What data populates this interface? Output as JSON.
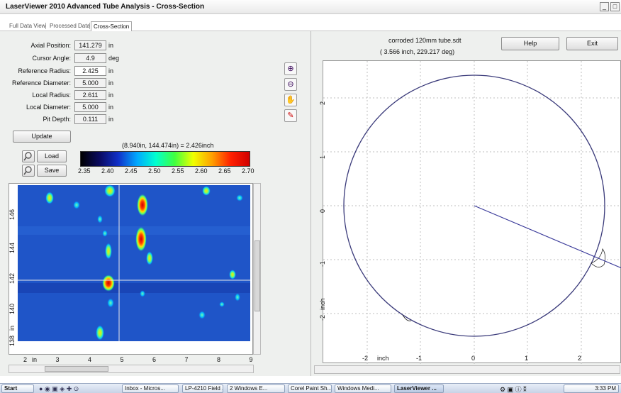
{
  "window": {
    "title": "LaserViewer 2010 Advanced Tube Analysis - Cross-Section",
    "min_label": "_",
    "max_label": "□"
  },
  "tabs": [
    {
      "label": "Full Data View"
    },
    {
      "label": "Processed Data"
    },
    {
      "label": "Cross-Section"
    }
  ],
  "fields": [
    {
      "label": "Axial Position:",
      "value": "141.279",
      "unit": "in"
    },
    {
      "label": "Cursor Angle:",
      "value": "4.9",
      "unit": "deg"
    },
    {
      "label": "Reference Radius:",
      "value": "2.425",
      "unit": "in"
    },
    {
      "label": "Reference Diameter:",
      "value": "5.000",
      "unit": "in"
    },
    {
      "label": "Local Radius:",
      "value": "2.611",
      "unit": "in"
    },
    {
      "label": "Local Diameter:",
      "value": "5.000",
      "unit": "in"
    },
    {
      "label": "Pit Depth:",
      "value": "0.111",
      "unit": "in"
    }
  ],
  "buttons": {
    "update": "Update",
    "load": "Load",
    "save": "Save",
    "help": "Help",
    "exit": "Exit"
  },
  "colorbar": {
    "readout": "(8.940in, 144.474in) = 2.426inch",
    "ticks": [
      "2.35",
      "2.40",
      "2.45",
      "2.50",
      "2.55",
      "2.60",
      "2.65",
      "2.70"
    ]
  },
  "heatmap": {
    "x_ticks": [
      "2",
      "3",
      "4",
      "5",
      "6",
      "7",
      "8",
      "9"
    ],
    "x_unit": "in",
    "y_ticks": [
      "146",
      "144",
      "142",
      "140",
      "138"
    ],
    "y_unit": "in"
  },
  "cross_section": {
    "file": "corroded 120mm tube.sdt",
    "cursor_readout": "( 3.566 inch, 229.217 deg)",
    "x_ticks": [
      "-2",
      "-1",
      "0",
      "1",
      "2"
    ],
    "x_label": "inch",
    "y_ticks": [
      "2",
      "1",
      "0",
      "-1",
      "-2"
    ],
    "y_label": "inch"
  },
  "taskbar": {
    "start": "Start",
    "items": [
      "Inbox - Micros...",
      "LP-4210 Field ...",
      "2 Windows E...",
      "Corel Paint Sh...",
      "Windows Medi...",
      "LaserViewer ..."
    ],
    "clock": "3:33 PM"
  },
  "colors": {
    "accent": "#2a2a6a",
    "circle": "#3a3a7a"
  }
}
